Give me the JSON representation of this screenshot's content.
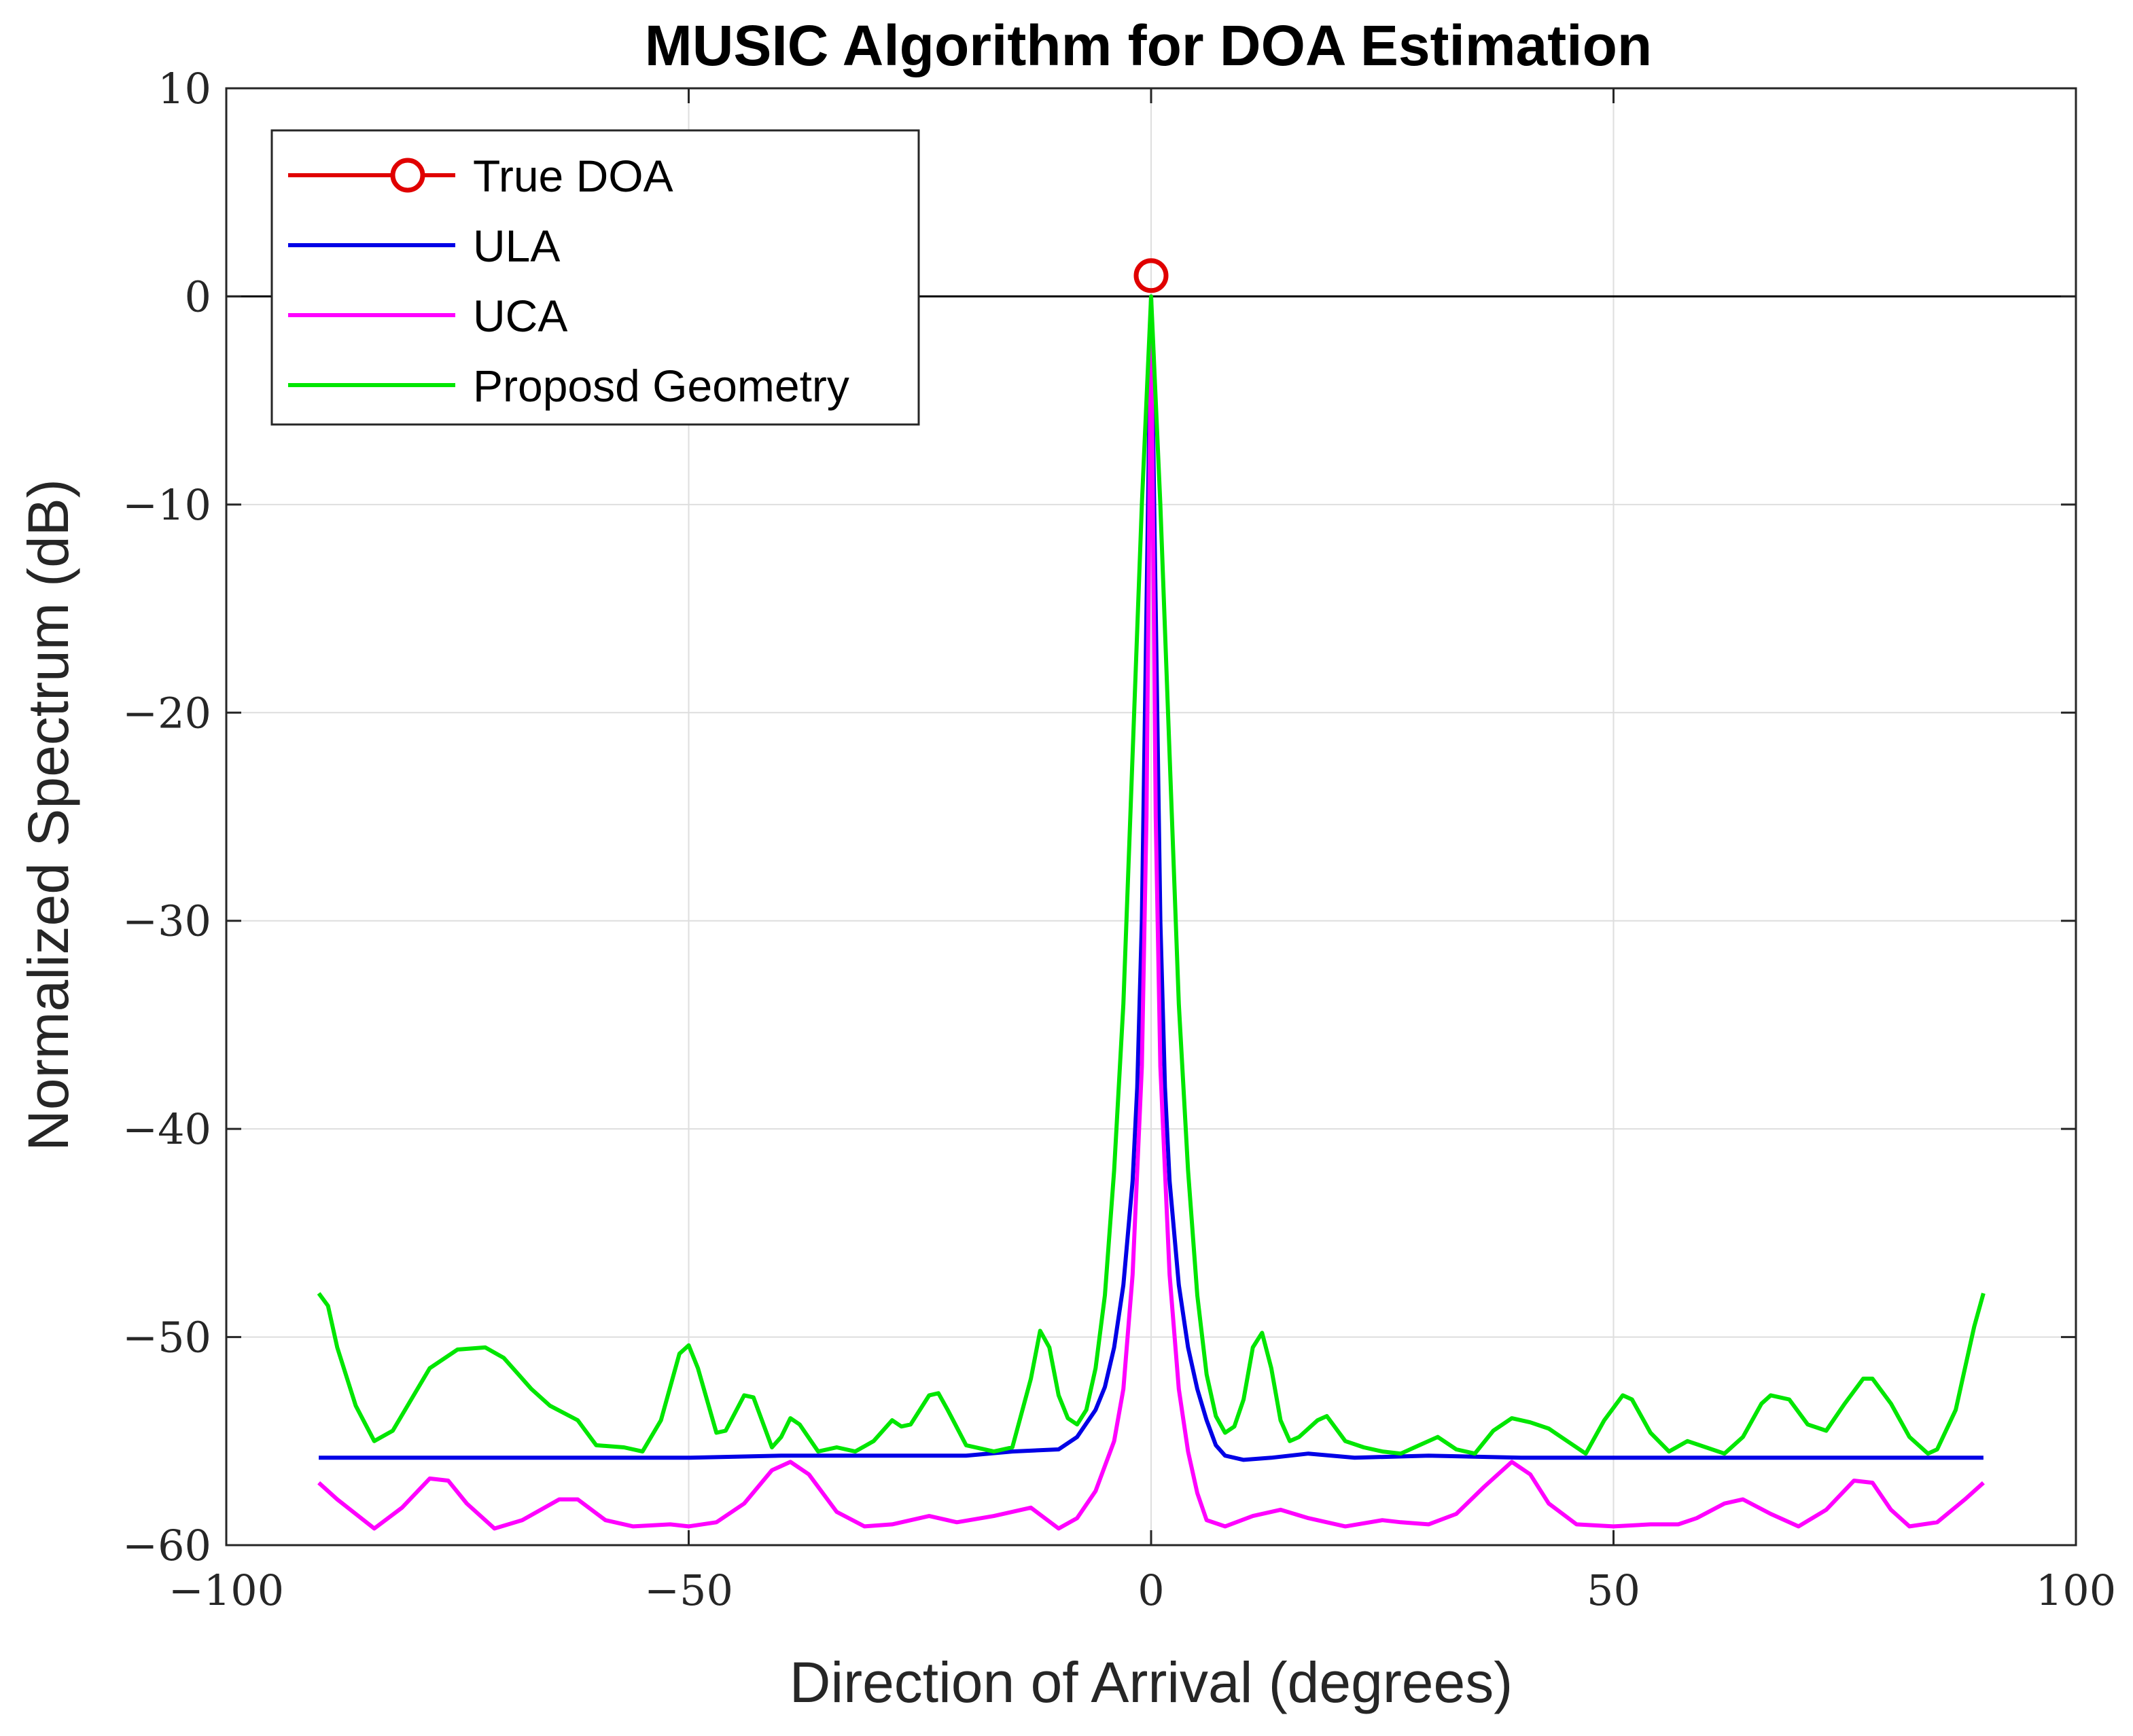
{
  "chart_data": {
    "type": "line",
    "title": "MUSIC Algorithm for DOA Estimation",
    "xlabel": "Direction of Arrival (degrees)",
    "ylabel": "Normalized Spectrum (dB)",
    "xlim": [
      -100,
      100
    ],
    "ylim": [
      -60,
      10
    ],
    "xticks": [
      -100,
      -50,
      0,
      50,
      100
    ],
    "xtick_labels": [
      "−100",
      "−50",
      "0",
      "50",
      "100"
    ],
    "yticks": [
      -60,
      -50,
      -40,
      -30,
      -20,
      -10,
      0,
      10
    ],
    "ytick_labels": [
      "−60",
      "−50",
      "−40",
      "−30",
      "−20",
      "−10",
      "0",
      "10"
    ],
    "grid": true,
    "legend_position": "top-left",
    "reference_line": {
      "y": 0,
      "color": "#000000"
    },
    "series": [
      {
        "name": "True DOA",
        "color": "#e00000",
        "marker": "circle",
        "points": [
          [
            0,
            1
          ]
        ]
      },
      {
        "name": "ULA",
        "color": "#0000e6",
        "points": [
          [
            -90,
            -55.8
          ],
          [
            -70,
            -55.8
          ],
          [
            -50,
            -55.8
          ],
          [
            -40,
            -55.7
          ],
          [
            -30,
            -55.7
          ],
          [
            -20,
            -55.7
          ],
          [
            -15,
            -55.5
          ],
          [
            -10,
            -55.4
          ],
          [
            -8,
            -54.8
          ],
          [
            -6,
            -53.5
          ],
          [
            -5,
            -52.4
          ],
          [
            -4,
            -50.5
          ],
          [
            -3,
            -47.5
          ],
          [
            -2,
            -42.5
          ],
          [
            -1.5,
            -38
          ],
          [
            -1,
            -30
          ],
          [
            -0.5,
            -15
          ],
          [
            0,
            0
          ],
          [
            0.5,
            -15
          ],
          [
            1,
            -30
          ],
          [
            1.5,
            -38
          ],
          [
            2,
            -42.5
          ],
          [
            3,
            -47.5
          ],
          [
            4,
            -50.5
          ],
          [
            5,
            -52.5
          ],
          [
            6,
            -54
          ],
          [
            7,
            -55.2
          ],
          [
            8,
            -55.7
          ],
          [
            10,
            -55.9
          ],
          [
            13,
            -55.8
          ],
          [
            17,
            -55.6
          ],
          [
            22,
            -55.8
          ],
          [
            30,
            -55.7
          ],
          [
            40,
            -55.8
          ],
          [
            50,
            -55.8
          ],
          [
            60,
            -55.8
          ],
          [
            70,
            -55.8
          ],
          [
            80,
            -55.8
          ],
          [
            90,
            -55.8
          ]
        ]
      },
      {
        "name": "UCA",
        "color": "#ff00ff",
        "points": [
          [
            -90,
            -57
          ],
          [
            -88,
            -57.8
          ],
          [
            -84,
            -59.2
          ],
          [
            -81,
            -58.2
          ],
          [
            -78,
            -56.8
          ],
          [
            -76,
            -56.9
          ],
          [
            -74,
            -58
          ],
          [
            -71,
            -59.2
          ],
          [
            -68,
            -58.8
          ],
          [
            -64,
            -57.8
          ],
          [
            -62,
            -57.8
          ],
          [
            -59,
            -58.8
          ],
          [
            -56,
            -59.1
          ],
          [
            -52,
            -59
          ],
          [
            -50,
            -59.1
          ],
          [
            -47,
            -58.9
          ],
          [
            -44,
            -58
          ],
          [
            -41,
            -56.4
          ],
          [
            -39,
            -56
          ],
          [
            -37,
            -56.6
          ],
          [
            -34,
            -58.4
          ],
          [
            -31,
            -59.1
          ],
          [
            -28,
            -59
          ],
          [
            -24,
            -58.6
          ],
          [
            -21,
            -58.9
          ],
          [
            -17,
            -58.6
          ],
          [
            -13,
            -58.2
          ],
          [
            -10,
            -59.2
          ],
          [
            -8,
            -58.7
          ],
          [
            -6,
            -57.4
          ],
          [
            -4,
            -55
          ],
          [
            -3,
            -52.5
          ],
          [
            -2,
            -47
          ],
          [
            -1,
            -37
          ],
          [
            -0.5,
            -25
          ],
          [
            0,
            -1
          ],
          [
            0.5,
            -25
          ],
          [
            1,
            -37
          ],
          [
            2,
            -47
          ],
          [
            3,
            -52.5
          ],
          [
            4,
            -55.5
          ],
          [
            5,
            -57.5
          ],
          [
            6,
            -58.8
          ],
          [
            8,
            -59.1
          ],
          [
            11,
            -58.6
          ],
          [
            14,
            -58.3
          ],
          [
            17,
            -58.7
          ],
          [
            21,
            -59.1
          ],
          [
            25,
            -58.8
          ],
          [
            27,
            -58.9
          ],
          [
            30,
            -59
          ],
          [
            33,
            -58.5
          ],
          [
            36,
            -57.2
          ],
          [
            39,
            -56
          ],
          [
            41,
            -56.6
          ],
          [
            43,
            -58
          ],
          [
            46,
            -59
          ],
          [
            50,
            -59.1
          ],
          [
            54,
            -59
          ],
          [
            57,
            -59
          ],
          [
            59,
            -58.7
          ],
          [
            62,
            -58
          ],
          [
            64,
            -57.8
          ],
          [
            67,
            -58.5
          ],
          [
            70,
            -59.1
          ],
          [
            73,
            -58.3
          ],
          [
            76,
            -56.9
          ],
          [
            78,
            -57
          ],
          [
            80,
            -58.3
          ],
          [
            82,
            -59.1
          ],
          [
            85,
            -58.9
          ],
          [
            88,
            -57.8
          ],
          [
            90,
            -57
          ]
        ]
      },
      {
        "name": "Proposd Geometry",
        "color": "#00e600",
        "points": [
          [
            -90,
            -47.9
          ],
          [
            -89,
            -48.5
          ],
          [
            -88,
            -50.5
          ],
          [
            -86,
            -53.3
          ],
          [
            -84,
            -55
          ],
          [
            -82,
            -54.5
          ],
          [
            -80,
            -53
          ],
          [
            -78,
            -51.5
          ],
          [
            -75,
            -50.6
          ],
          [
            -72,
            -50.5
          ],
          [
            -70,
            -51
          ],
          [
            -67,
            -52.5
          ],
          [
            -65,
            -53.3
          ],
          [
            -62,
            -54
          ],
          [
            -60,
            -55.2
          ],
          [
            -57,
            -55.3
          ],
          [
            -55,
            -55.5
          ],
          [
            -53,
            -54
          ],
          [
            -51,
            -50.8
          ],
          [
            -50,
            -50.4
          ],
          [
            -49,
            -51.5
          ],
          [
            -47,
            -54.6
          ],
          [
            -46,
            -54.5
          ],
          [
            -44,
            -52.8
          ],
          [
            -43,
            -52.9
          ],
          [
            -41,
            -55.3
          ],
          [
            -40,
            -54.8
          ],
          [
            -39,
            -53.9
          ],
          [
            -38,
            -54.2
          ],
          [
            -36,
            -55.5
          ],
          [
            -34,
            -55.3
          ],
          [
            -32,
            -55.5
          ],
          [
            -30,
            -55
          ],
          [
            -28,
            -54
          ],
          [
            -27,
            -54.3
          ],
          [
            -26,
            -54.2
          ],
          [
            -24,
            -52.8
          ],
          [
            -23,
            -52.7
          ],
          [
            -22,
            -53.5
          ],
          [
            -20,
            -55.2
          ],
          [
            -17,
            -55.5
          ],
          [
            -15,
            -55.3
          ],
          [
            -13,
            -52
          ],
          [
            -12,
            -49.7
          ],
          [
            -11,
            -50.5
          ],
          [
            -10,
            -52.8
          ],
          [
            -9,
            -53.9
          ],
          [
            -8,
            -54.2
          ],
          [
            -7,
            -53.5
          ],
          [
            -6,
            -51.5
          ],
          [
            -5,
            -48
          ],
          [
            -4,
            -42
          ],
          [
            -3,
            -34
          ],
          [
            -2,
            -22
          ],
          [
            -1,
            -10
          ],
          [
            0,
            0
          ],
          [
            1,
            -10
          ],
          [
            2,
            -22
          ],
          [
            3,
            -34
          ],
          [
            4,
            -42
          ],
          [
            5,
            -48
          ],
          [
            6,
            -51.8
          ],
          [
            7,
            -53.8
          ],
          [
            8,
            -54.6
          ],
          [
            9,
            -54.3
          ],
          [
            10,
            -53
          ],
          [
            11,
            -50.5
          ],
          [
            12,
            -49.8
          ],
          [
            13,
            -51.5
          ],
          [
            14,
            -54
          ],
          [
            15,
            -55
          ],
          [
            16,
            -54.8
          ],
          [
            18,
            -54
          ],
          [
            19,
            -53.8
          ],
          [
            21,
            -55
          ],
          [
            23,
            -55.3
          ],
          [
            25,
            -55.5
          ],
          [
            27,
            -55.6
          ],
          [
            29,
            -55.2
          ],
          [
            31,
            -54.8
          ],
          [
            33,
            -55.4
          ],
          [
            35,
            -55.6
          ],
          [
            37,
            -54.5
          ],
          [
            39,
            -53.9
          ],
          [
            41,
            -54.1
          ],
          [
            43,
            -54.4
          ],
          [
            45,
            -55
          ],
          [
            47,
            -55.6
          ],
          [
            49,
            -54
          ],
          [
            51,
            -52.8
          ],
          [
            52,
            -53
          ],
          [
            54,
            -54.6
          ],
          [
            56,
            -55.5
          ],
          [
            58,
            -55
          ],
          [
            60,
            -55.3
          ],
          [
            62,
            -55.6
          ],
          [
            64,
            -54.8
          ],
          [
            66,
            -53.2
          ],
          [
            67,
            -52.8
          ],
          [
            69,
            -53
          ],
          [
            71,
            -54.2
          ],
          [
            73,
            -54.5
          ],
          [
            75,
            -53.2
          ],
          [
            77,
            -52
          ],
          [
            78,
            -52
          ],
          [
            80,
            -53.2
          ],
          [
            82,
            -54.8
          ],
          [
            84,
            -55.6
          ],
          [
            85,
            -55.4
          ],
          [
            87,
            -53.5
          ],
          [
            88,
            -51.5
          ],
          [
            89,
            -49.5
          ],
          [
            90,
            -47.9
          ]
        ]
      }
    ]
  }
}
